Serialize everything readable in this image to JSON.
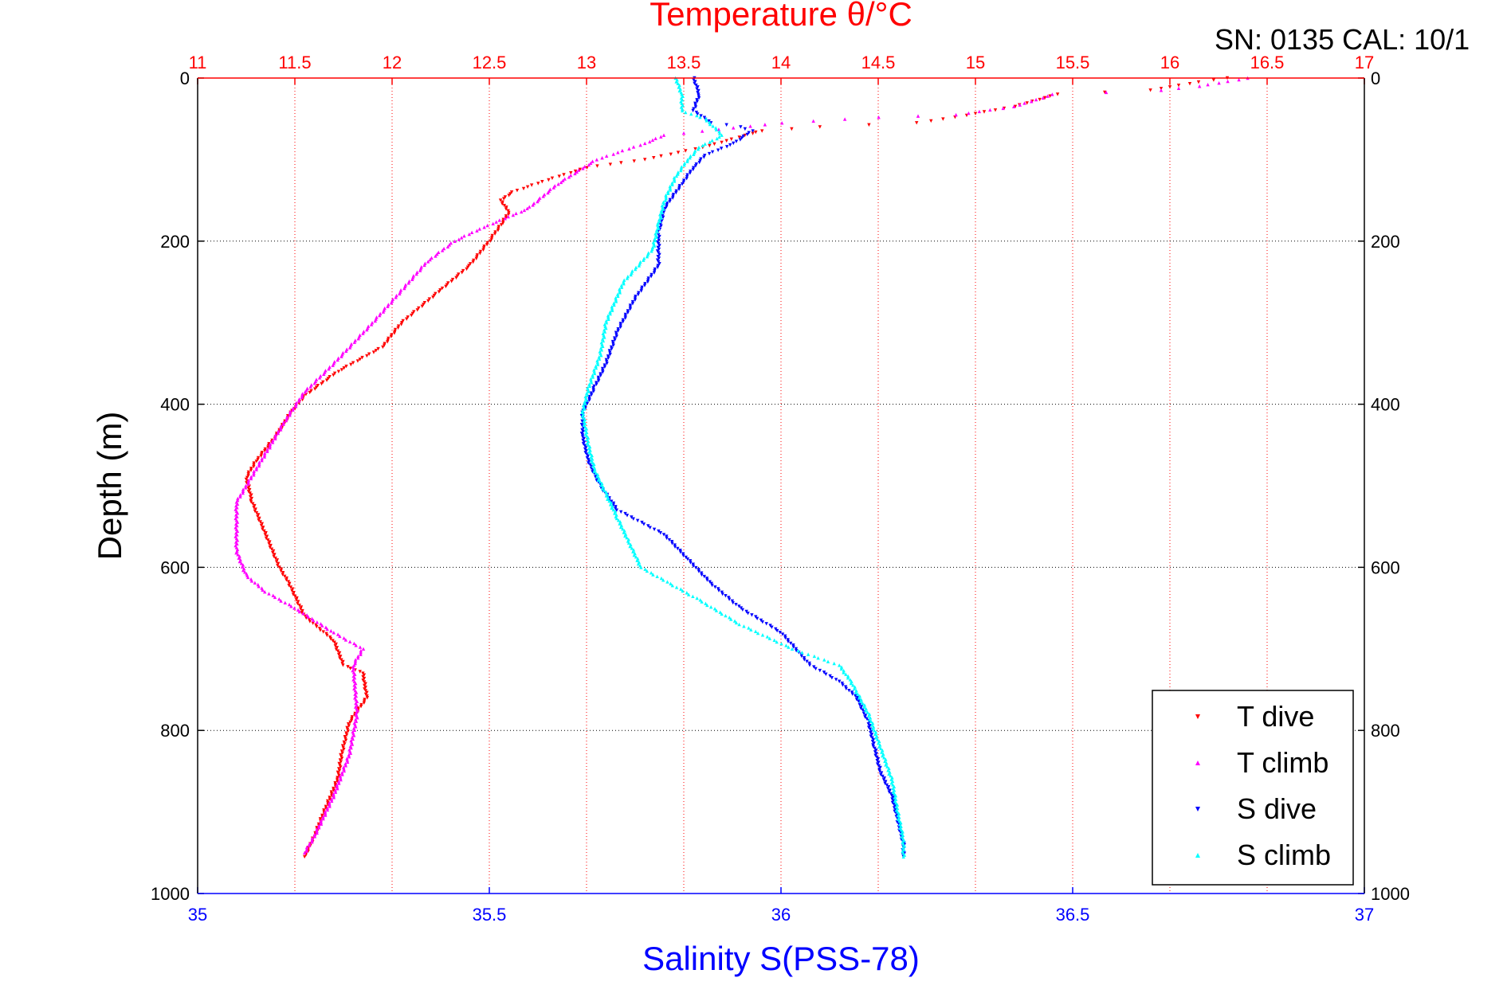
{
  "annotation": "SN: 0135  CAL: 10/1",
  "chart_data": {
    "type": "scatter",
    "title_top": "Temperature θ/°C",
    "xlabel_bottom": "Salinity S(PSS-78)",
    "ylabel": "Depth (m)",
    "x_bottom": {
      "label": "Salinity S(PSS-78)",
      "lim": [
        35,
        37
      ],
      "ticks": [
        35,
        35.5,
        36,
        36.5,
        37
      ],
      "color": "#0000ff"
    },
    "x_top": {
      "label": "Temperature θ/°C",
      "lim": [
        11,
        17
      ],
      "ticks": [
        11,
        11.5,
        12,
        12.5,
        13,
        13.5,
        14,
        14.5,
        15,
        15.5,
        16,
        16.5,
        17
      ],
      "color": "#ff0000"
    },
    "y": {
      "label": "Depth (m)",
      "lim": [
        0,
        1000
      ],
      "ticks": [
        0,
        200,
        400,
        600,
        800,
        1000
      ],
      "reversed": true
    },
    "grid": true,
    "legend_position": "bottom-right",
    "series": [
      {
        "name": "T dive",
        "axis": "top",
        "color": "#ff0000",
        "marker": "triangle-down",
        "points": [
          [
            16.3,
            0
          ],
          [
            16.15,
            5
          ],
          [
            15.9,
            15
          ],
          [
            15.42,
            20
          ],
          [
            15.2,
            35
          ],
          [
            14.9,
            48
          ],
          [
            14.7,
            55
          ],
          [
            14.2,
            60
          ],
          [
            13.9,
            65
          ],
          [
            13.85,
            68
          ],
          [
            13.75,
            75
          ],
          [
            13.6,
            85
          ],
          [
            13.3,
            100
          ],
          [
            13.0,
            110
          ],
          [
            12.8,
            125
          ],
          [
            12.62,
            140
          ],
          [
            12.56,
            150
          ],
          [
            12.6,
            165
          ],
          [
            12.56,
            180
          ],
          [
            12.5,
            200
          ],
          [
            12.4,
            230
          ],
          [
            12.25,
            260
          ],
          [
            12.05,
            300
          ],
          [
            11.95,
            330
          ],
          [
            11.72,
            360
          ],
          [
            11.55,
            390
          ],
          [
            11.48,
            410
          ],
          [
            11.4,
            440
          ],
          [
            11.3,
            470
          ],
          [
            11.25,
            490
          ],
          [
            11.28,
            520
          ],
          [
            11.35,
            560
          ],
          [
            11.42,
            600
          ],
          [
            11.47,
            620
          ],
          [
            11.55,
            660
          ],
          [
            11.7,
            690
          ],
          [
            11.75,
            720
          ],
          [
            11.85,
            730
          ],
          [
            11.87,
            760
          ],
          [
            11.78,
            790
          ],
          [
            11.74,
            830
          ],
          [
            11.72,
            860
          ],
          [
            11.65,
            900
          ],
          [
            11.6,
            930
          ],
          [
            11.55,
            955
          ]
        ]
      },
      {
        "name": "T climb",
        "axis": "top",
        "color": "#ff00ff",
        "marker": "triangle-up",
        "points": [
          [
            16.4,
            0
          ],
          [
            16.15,
            10
          ],
          [
            15.95,
            15
          ],
          [
            15.4,
            20
          ],
          [
            15.2,
            35
          ],
          [
            14.9,
            45
          ],
          [
            14.5,
            48
          ],
          [
            14.0,
            55
          ],
          [
            13.6,
            65
          ],
          [
            13.4,
            70
          ],
          [
            13.3,
            80
          ],
          [
            13.05,
            100
          ],
          [
            12.85,
            130
          ],
          [
            12.7,
            160
          ],
          [
            12.6,
            170
          ],
          [
            12.45,
            185
          ],
          [
            12.32,
            200
          ],
          [
            12.18,
            225
          ],
          [
            12.05,
            260
          ],
          [
            11.9,
            300
          ],
          [
            11.7,
            350
          ],
          [
            11.55,
            385
          ],
          [
            11.45,
            420
          ],
          [
            11.35,
            460
          ],
          [
            11.25,
            500
          ],
          [
            11.2,
            520
          ],
          [
            11.2,
            580
          ],
          [
            11.25,
            610
          ],
          [
            11.35,
            630
          ],
          [
            11.5,
            650
          ],
          [
            11.7,
            680
          ],
          [
            11.85,
            700
          ],
          [
            11.8,
            720
          ],
          [
            11.82,
            780
          ],
          [
            11.78,
            830
          ],
          [
            11.7,
            880
          ],
          [
            11.6,
            930
          ],
          [
            11.55,
            950
          ]
        ]
      },
      {
        "name": "S dive",
        "axis": "bottom",
        "color": "#0000ff",
        "marker": "triangle-down",
        "points": [
          [
            35.85,
            0
          ],
          [
            35.86,
            20
          ],
          [
            35.85,
            40
          ],
          [
            35.88,
            55
          ],
          [
            35.93,
            60
          ],
          [
            35.95,
            65
          ],
          [
            35.92,
            80
          ],
          [
            35.87,
            95
          ],
          [
            35.85,
            110
          ],
          [
            35.83,
            130
          ],
          [
            35.8,
            160
          ],
          [
            35.79,
            190
          ],
          [
            35.79,
            230
          ],
          [
            35.75,
            270
          ],
          [
            35.72,
            310
          ],
          [
            35.7,
            350
          ],
          [
            35.68,
            380
          ],
          [
            35.66,
            410
          ],
          [
            35.66,
            440
          ],
          [
            35.67,
            470
          ],
          [
            35.69,
            500
          ],
          [
            35.72,
            530
          ],
          [
            35.8,
            560
          ],
          [
            35.84,
            590
          ],
          [
            35.88,
            620
          ],
          [
            35.93,
            650
          ],
          [
            36.0,
            680
          ],
          [
            36.05,
            720
          ],
          [
            36.1,
            740
          ],
          [
            36.13,
            760
          ],
          [
            36.15,
            790
          ],
          [
            36.16,
            820
          ],
          [
            36.17,
            850
          ],
          [
            36.19,
            880
          ],
          [
            36.2,
            910
          ],
          [
            36.21,
            940
          ],
          [
            36.21,
            955
          ]
        ]
      },
      {
        "name": "S climb",
        "axis": "bottom",
        "color": "#00ffff",
        "marker": "triangle-up",
        "points": [
          [
            35.82,
            0
          ],
          [
            35.83,
            20
          ],
          [
            35.83,
            40
          ],
          [
            35.87,
            50
          ],
          [
            35.9,
            70
          ],
          [
            35.86,
            85
          ],
          [
            35.84,
            100
          ],
          [
            35.82,
            120
          ],
          [
            35.8,
            150
          ],
          [
            35.79,
            180
          ],
          [
            35.78,
            210
          ],
          [
            35.73,
            250
          ],
          [
            35.7,
            300
          ],
          [
            35.69,
            340
          ],
          [
            35.67,
            380
          ],
          [
            35.66,
            410
          ],
          [
            35.67,
            450
          ],
          [
            35.68,
            480
          ],
          [
            35.7,
            510
          ],
          [
            35.72,
            540
          ],
          [
            35.74,
            570
          ],
          [
            35.76,
            600
          ],
          [
            35.81,
            620
          ],
          [
            35.86,
            640
          ],
          [
            35.93,
            670
          ],
          [
            36.02,
            700
          ],
          [
            36.1,
            720
          ],
          [
            36.12,
            740
          ],
          [
            36.15,
            780
          ],
          [
            36.17,
            820
          ],
          [
            36.19,
            860
          ],
          [
            36.2,
            900
          ],
          [
            36.21,
            935
          ],
          [
            36.21,
            955
          ]
        ]
      }
    ]
  }
}
